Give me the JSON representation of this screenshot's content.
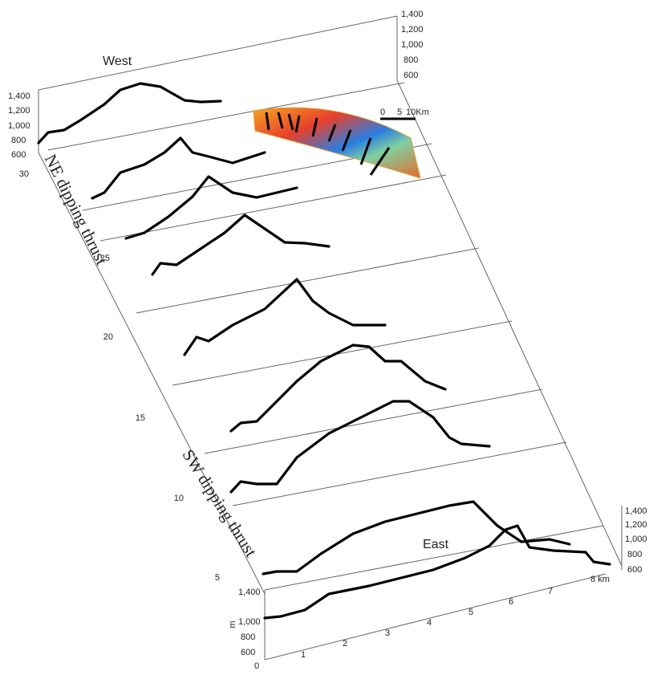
{
  "labels": {
    "west": "West",
    "east": "East",
    "ne": "NE dipping thrust",
    "sw": "SW dipping thrust"
  },
  "top_right_axis": [
    "1,400",
    "1,200",
    "1,000",
    "800",
    "600"
  ],
  "top_left_axis": [
    "1,400",
    "1,200",
    "1,000",
    "800",
    "600"
  ],
  "distance_axis": [
    "30",
    "25",
    "20",
    "15",
    "10",
    "5"
  ],
  "bottom_right_axis": [
    "1,400",
    "1,200",
    "1,000",
    "800",
    "600"
  ],
  "bottom_left_axis": [
    "1,400",
    "1,000",
    "800",
    "600"
  ],
  "bottom_left_unit": "m",
  "x_axis": [
    "0",
    "1",
    "2",
    "3",
    "4",
    "5",
    "6",
    "7",
    "8 km"
  ],
  "scale_bar": [
    "0",
    "5",
    "10Km"
  ]
}
